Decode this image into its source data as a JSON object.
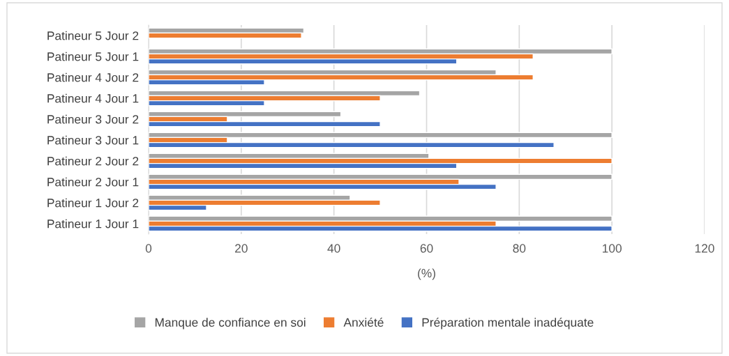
{
  "chart_data": {
    "type": "bar",
    "orientation": "horizontal",
    "xlabel": "(%)",
    "categories": [
      "Patineur 5 Jour 2",
      "Patineur 5 Jour 1",
      "Patineur 4 Jour 2",
      "Patineur 4 Jour 1",
      "Patineur 3 Jour 2",
      "Patineur 3 Jour 1",
      "Patineur 2 Jour 2",
      "Patineur 2 Jour 1",
      "Patineur 1 Jour 2",
      "Patineur 1 Jour 1"
    ],
    "series": [
      {
        "name": "Manque de confiance en soi",
        "color": "#a5a5a5",
        "values": [
          33.5,
          100,
          75,
          58.5,
          41.5,
          100,
          60.5,
          100,
          43.5,
          100
        ]
      },
      {
        "name": "Anxiété",
        "color": "#ed7d31",
        "values": [
          33,
          83,
          83,
          50,
          17,
          17,
          100,
          67,
          50,
          75
        ]
      },
      {
        "name": "Préparation mentale inadéquate",
        "color": "#4472c4",
        "values": [
          null,
          66.5,
          25,
          25,
          50,
          87.5,
          66.5,
          75,
          12.5,
          100
        ]
      }
    ],
    "xlim": [
      0,
      120
    ],
    "xticks": [
      0,
      20,
      40,
      60,
      80,
      100,
      120
    ],
    "grid": "x",
    "legend": "bottom"
  }
}
